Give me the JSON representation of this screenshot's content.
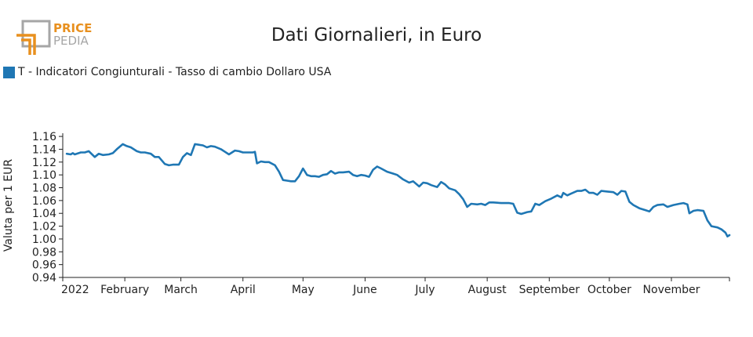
{
  "logo": {
    "text_top": "PRICE",
    "text_bottom": "PEDIA",
    "orange": "#e8901f",
    "gray": "#a6a6a6"
  },
  "chart_data": {
    "type": "line",
    "title": "Dati Giornalieri, in Euro",
    "ylabel": "Valuta per 1 EUR",
    "xlabel": "",
    "ylim": [
      0.94,
      1.165
    ],
    "yticks": [
      0.94,
      0.96,
      0.98,
      1.0,
      1.02,
      1.04,
      1.06,
      1.08,
      1.1,
      1.12,
      1.14,
      1.16
    ],
    "xlim": [
      "2022-01-01",
      "2022-11-30"
    ],
    "xticks": [
      {
        "date": "2022-01-01",
        "label": "2022"
      },
      {
        "date": "2022-02-01",
        "label": "February"
      },
      {
        "date": "2022-03-01",
        "label": "March"
      },
      {
        "date": "2022-04-01",
        "label": "April"
      },
      {
        "date": "2022-05-01",
        "label": "May"
      },
      {
        "date": "2022-06-01",
        "label": "June"
      },
      {
        "date": "2022-07-01",
        "label": "July"
      },
      {
        "date": "2022-08-01",
        "label": "August"
      },
      {
        "date": "2022-09-01",
        "label": "September"
      },
      {
        "date": "2022-10-01",
        "label": "October"
      },
      {
        "date": "2022-11-01",
        "label": "November"
      }
    ],
    "grid": false,
    "legend_position": "top-left",
    "series": [
      {
        "name": "T - Indicatori Congiunturali - Tasso di cambio Dollaro USA",
        "color": "#1f77b4",
        "points": [
          [
            "2022-01-03",
            1.133
          ],
          [
            "2022-01-05",
            1.132
          ],
          [
            "2022-01-06",
            1.134
          ],
          [
            "2022-01-07",
            1.132
          ],
          [
            "2022-01-10",
            1.135
          ],
          [
            "2022-01-12",
            1.135
          ],
          [
            "2022-01-14",
            1.137
          ],
          [
            "2022-01-17",
            1.128
          ],
          [
            "2022-01-19",
            1.133
          ],
          [
            "2022-01-21",
            1.131
          ],
          [
            "2022-01-24",
            1.132
          ],
          [
            "2022-01-26",
            1.134
          ],
          [
            "2022-01-28",
            1.14
          ],
          [
            "2022-01-31",
            1.148
          ],
          [
            "2022-02-02",
            1.145
          ],
          [
            "2022-02-04",
            1.143
          ],
          [
            "2022-02-07",
            1.137
          ],
          [
            "2022-02-09",
            1.135
          ],
          [
            "2022-02-11",
            1.135
          ],
          [
            "2022-02-14",
            1.133
          ],
          [
            "2022-02-16",
            1.128
          ],
          [
            "2022-02-18",
            1.128
          ],
          [
            "2022-02-21",
            1.117
          ],
          [
            "2022-02-23",
            1.115
          ],
          [
            "2022-02-25",
            1.116
          ],
          [
            "2022-02-28",
            1.116
          ],
          [
            "2022-03-02",
            1.128
          ],
          [
            "2022-03-04",
            1.134
          ],
          [
            "2022-03-06",
            1.131
          ],
          [
            "2022-03-08",
            1.148
          ],
          [
            "2022-03-10",
            1.147
          ],
          [
            "2022-03-12",
            1.146
          ],
          [
            "2022-03-14",
            1.143
          ],
          [
            "2022-03-16",
            1.145
          ],
          [
            "2022-03-18",
            1.144
          ],
          [
            "2022-03-21",
            1.14
          ],
          [
            "2022-03-23",
            1.136
          ],
          [
            "2022-03-25",
            1.132
          ],
          [
            "2022-03-28",
            1.138
          ],
          [
            "2022-03-30",
            1.137
          ],
          [
            "2022-04-01",
            1.135
          ],
          [
            "2022-04-04",
            1.135
          ],
          [
            "2022-04-06",
            1.135
          ],
          [
            "2022-04-07",
            1.136
          ],
          [
            "2022-04-08",
            1.118
          ],
          [
            "2022-04-10",
            1.121
          ],
          [
            "2022-04-12",
            1.12
          ],
          [
            "2022-04-14",
            1.12
          ],
          [
            "2022-04-17",
            1.115
          ],
          [
            "2022-04-19",
            1.105
          ],
          [
            "2022-04-21",
            1.092
          ],
          [
            "2022-04-23",
            1.091
          ],
          [
            "2022-04-25",
            1.09
          ],
          [
            "2022-04-27",
            1.09
          ],
          [
            "2022-04-29",
            1.098
          ],
          [
            "2022-05-01",
            1.11
          ],
          [
            "2022-05-03",
            1.1
          ],
          [
            "2022-05-05",
            1.098
          ],
          [
            "2022-05-07",
            1.098
          ],
          [
            "2022-05-09",
            1.097
          ],
          [
            "2022-05-11",
            1.1
          ],
          [
            "2022-05-13",
            1.101
          ],
          [
            "2022-05-15",
            1.106
          ],
          [
            "2022-05-17",
            1.102
          ],
          [
            "2022-05-19",
            1.104
          ],
          [
            "2022-05-21",
            1.104
          ],
          [
            "2022-05-24",
            1.105
          ],
          [
            "2022-05-26",
            1.1
          ],
          [
            "2022-05-28",
            1.098
          ],
          [
            "2022-05-30",
            1.1
          ],
          [
            "2022-06-01",
            1.099
          ],
          [
            "2022-06-03",
            1.097
          ],
          [
            "2022-06-05",
            1.108
          ],
          [
            "2022-06-07",
            1.113
          ],
          [
            "2022-06-09",
            1.11
          ],
          [
            "2022-06-12",
            1.105
          ],
          [
            "2022-06-15",
            1.102
          ],
          [
            "2022-06-17",
            1.1
          ],
          [
            "2022-06-20",
            1.093
          ],
          [
            "2022-06-23",
            1.088
          ],
          [
            "2022-06-25",
            1.09
          ],
          [
            "2022-06-28",
            1.082
          ],
          [
            "2022-06-30",
            1.088
          ],
          [
            "2022-07-02",
            1.087
          ],
          [
            "2022-07-04",
            1.084
          ],
          [
            "2022-07-07",
            1.081
          ],
          [
            "2022-07-09",
            1.089
          ],
          [
            "2022-07-11",
            1.085
          ],
          [
            "2022-07-13",
            1.079
          ],
          [
            "2022-07-16",
            1.076
          ],
          [
            "2022-07-18",
            1.07
          ],
          [
            "2022-07-20",
            1.062
          ],
          [
            "2022-07-22",
            1.05
          ],
          [
            "2022-07-24",
            1.055
          ],
          [
            "2022-07-27",
            1.054
          ],
          [
            "2022-07-29",
            1.055
          ],
          [
            "2022-07-31",
            1.053
          ],
          [
            "2022-08-02",
            1.057
          ],
          [
            "2022-08-04",
            1.057
          ],
          [
            "2022-08-08",
            1.056
          ],
          [
            "2022-08-12",
            1.056
          ],
          [
            "2022-08-14",
            1.055
          ],
          [
            "2022-08-16",
            1.041
          ],
          [
            "2022-08-18",
            1.039
          ],
          [
            "2022-08-21",
            1.042
          ],
          [
            "2022-08-23",
            1.043
          ],
          [
            "2022-08-25",
            1.055
          ],
          [
            "2022-08-27",
            1.053
          ],
          [
            "2022-08-30",
            1.059
          ],
          [
            "2022-09-02",
            1.063
          ],
          [
            "2022-09-05",
            1.068
          ],
          [
            "2022-09-07",
            1.065
          ],
          [
            "2022-09-08",
            1.072
          ],
          [
            "2022-09-10",
            1.068
          ],
          [
            "2022-09-12",
            1.071
          ],
          [
            "2022-09-15",
            1.075
          ],
          [
            "2022-09-17",
            1.075
          ],
          [
            "2022-09-19",
            1.077
          ],
          [
            "2022-09-21",
            1.072
          ],
          [
            "2022-09-23",
            1.072
          ],
          [
            "2022-09-25",
            1.069
          ],
          [
            "2022-09-27",
            1.075
          ],
          [
            "2022-09-30",
            1.074
          ],
          [
            "2022-10-03",
            1.073
          ],
          [
            "2022-10-05",
            1.069
          ],
          [
            "2022-10-07",
            1.075
          ],
          [
            "2022-10-09",
            1.074
          ],
          [
            "2022-10-11",
            1.058
          ],
          [
            "2022-10-13",
            1.053
          ],
          [
            "2022-10-16",
            1.048
          ],
          [
            "2022-10-19",
            1.045
          ],
          [
            "2022-10-21",
            1.043
          ],
          [
            "2022-10-23",
            1.05
          ],
          [
            "2022-10-25",
            1.053
          ],
          [
            "2022-10-28",
            1.054
          ],
          [
            "2022-10-30",
            1.05
          ],
          [
            "2022-11-02",
            1.053
          ],
          [
            "2022-11-05",
            1.055
          ],
          [
            "2022-11-07",
            1.056
          ],
          [
            "2022-11-09",
            1.054
          ],
          [
            "2022-11-10",
            1.04
          ],
          [
            "2022-11-12",
            1.044
          ],
          [
            "2022-11-14",
            1.045
          ],
          [
            "2022-11-17",
            1.044
          ],
          [
            "2022-11-19",
            1.029
          ],
          [
            "2022-11-21",
            1.02
          ],
          [
            "2022-11-24",
            1.018
          ],
          [
            "2022-11-26",
            1.015
          ],
          [
            "2022-11-28",
            1.01
          ],
          [
            "2022-11-29",
            1.004
          ],
          [
            "2022-11-30",
            1.006
          ]
        ]
      }
    ]
  }
}
